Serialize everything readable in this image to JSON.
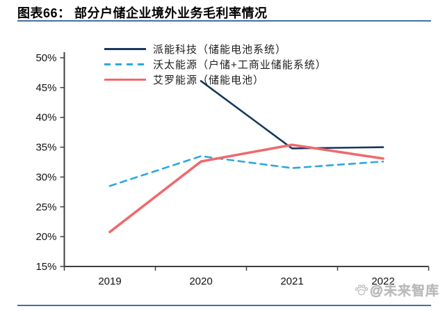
{
  "header": {
    "title": "图表66：  部分户储企业境外业务毛利率情况"
  },
  "watermark": {
    "text": "@未来智库"
  },
  "theme": {
    "rule_blue": "#44709d",
    "axis_color": "#3f3f3f",
    "text_color": "#111111"
  },
  "chart_data": {
    "type": "line",
    "title": "部分户储企业境外业务毛利率情况",
    "categories": [
      "2019",
      "2020",
      "2021",
      "2022"
    ],
    "series": [
      {
        "name": "派能科技（储能电池系统）",
        "color": "#17375e",
        "style": "solid",
        "stroke_width": 2.6,
        "values": [
          null,
          46.1,
          34.8,
          35.0
        ]
      },
      {
        "name": "沃太能源（户储+工商业储能系统）",
        "color": "#2ba8e0",
        "style": "dashed",
        "stroke_width": 2.6,
        "values": [
          28.5,
          33.5,
          31.5,
          32.6
        ]
      },
      {
        "name": "艾罗能源（储能电池）",
        "color": "#ee6a6d",
        "style": "solid",
        "stroke_width": 3.6,
        "values": [
          20.8,
          32.6,
          35.4,
          33.1
        ]
      }
    ],
    "xlabel": "",
    "ylabel": "",
    "ylim": [
      15,
      50
    ],
    "ytick_step": 5,
    "ytick_labels": [
      "15%",
      "20%",
      "25%",
      "30%",
      "35%",
      "40%",
      "45%",
      "50%"
    ],
    "legend_position": "top-left-inside",
    "grid": false
  }
}
